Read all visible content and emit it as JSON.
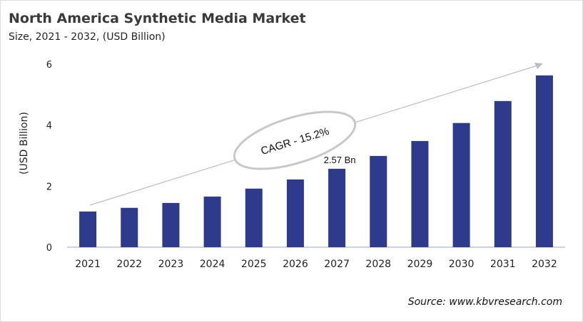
{
  "chart_data": {
    "type": "bar",
    "title": "North America Synthetic Media Market",
    "subtitle": "Size, 2021 - 2032, (USD Billion)",
    "ylabel": "(USD Billion)",
    "xlabel": "",
    "categories": [
      "2021",
      "2022",
      "2023",
      "2024",
      "2025",
      "2026",
      "2027",
      "2028",
      "2029",
      "2030",
      "2031",
      "2032"
    ],
    "values": [
      1.17,
      1.29,
      1.45,
      1.66,
      1.92,
      2.22,
      2.57,
      2.99,
      3.48,
      4.07,
      4.79,
      5.63
    ],
    "ylim": [
      0,
      6
    ],
    "yticks": [
      "0",
      "2",
      "4",
      "6"
    ],
    "grid": false,
    "bar_color": "#2e3a8c",
    "annotations": {
      "data_label": "2.57 Bn",
      "data_label_category": "2027",
      "cagr": "CAGR - 15.2%"
    },
    "source": "Source: www.kbvresearch.com"
  }
}
